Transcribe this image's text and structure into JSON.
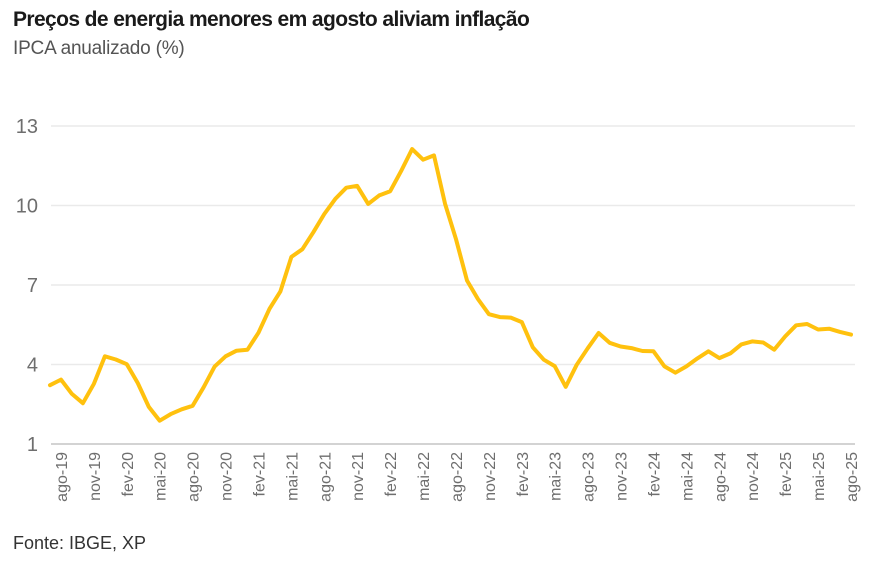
{
  "footer": {
    "source": "Fonte: IBGE, XP"
  },
  "chart_data": {
    "type": "line",
    "title": "Preços de energia menores em agosto aliviam inflação",
    "subtitle": "IPCA anualizado (%)",
    "xlabel": "",
    "ylabel": "",
    "ylim": [
      1,
      13
    ],
    "y_ticks": [
      1,
      4,
      7,
      10,
      13
    ],
    "grid": "horizontal",
    "legend": "none",
    "line_color": "#FFC10E",
    "x_tick_start_index": 1,
    "x_tick_step": 3,
    "x_tick_labels": [
      "ago-19",
      "nov-19",
      "fev-20",
      "mai-20",
      "ago-20",
      "nov-20",
      "fev-21",
      "mai-21",
      "ago-21",
      "nov-21",
      "fev-22",
      "mai-22",
      "ago-22",
      "nov-22",
      "fev-23",
      "mai-23",
      "ago-23",
      "nov-23",
      "fev-24",
      "mai-24",
      "ago-24",
      "nov-24",
      "fev-25",
      "mai-25",
      "ago-25"
    ],
    "series": [
      {
        "name": "IPCA anualizado (%)",
        "color": "#FFC10E",
        "x": [
          "jul-19",
          "ago-19",
          "set-19",
          "out-19",
          "nov-19",
          "dez-19",
          "jan-20",
          "fev-20",
          "mar-20",
          "abr-20",
          "mai-20",
          "jun-20",
          "jul-20",
          "ago-20",
          "set-20",
          "out-20",
          "nov-20",
          "dez-20",
          "jan-21",
          "fev-21",
          "mar-21",
          "abr-21",
          "mai-21",
          "jun-21",
          "jul-21",
          "ago-21",
          "set-21",
          "out-21",
          "nov-21",
          "dez-21",
          "jan-22",
          "fev-22",
          "mar-22",
          "abr-22",
          "mai-22",
          "jun-22",
          "jul-22",
          "ago-22",
          "set-22",
          "out-22",
          "nov-22",
          "dez-22",
          "jan-23",
          "fev-23",
          "mar-23",
          "abr-23",
          "mai-23",
          "jun-23",
          "jul-23",
          "ago-23",
          "set-23",
          "out-23",
          "nov-23",
          "dez-23",
          "jan-24",
          "fev-24",
          "mar-24",
          "abr-24",
          "mai-24",
          "jun-24",
          "jul-24",
          "ago-24",
          "set-24",
          "out-24",
          "nov-24",
          "dez-24",
          "jan-25",
          "fev-25",
          "mar-25",
          "abr-25",
          "mai-25",
          "jun-25",
          "jul-25",
          "ago-25"
        ],
        "values": [
          3.22,
          3.43,
          2.89,
          2.54,
          3.27,
          4.31,
          4.19,
          4.01,
          3.3,
          2.4,
          1.88,
          2.13,
          2.31,
          2.44,
          3.14,
          3.92,
          4.31,
          4.52,
          4.56,
          5.2,
          6.1,
          6.76,
          8.06,
          8.35,
          8.99,
          9.68,
          10.25,
          10.67,
          10.74,
          10.06,
          10.38,
          10.54,
          11.3,
          12.13,
          11.73,
          11.89,
          10.07,
          8.73,
          7.17,
          6.47,
          5.9,
          5.79,
          5.77,
          5.6,
          4.65,
          4.18,
          3.94,
          3.16,
          3.99,
          4.61,
          5.19,
          4.82,
          4.68,
          4.62,
          4.51,
          4.5,
          3.93,
          3.69,
          3.93,
          4.23,
          4.5,
          4.24,
          4.42,
          4.76,
          4.87,
          4.83,
          4.56,
          5.06,
          5.48,
          5.53,
          5.32,
          5.35,
          5.23,
          5.13
        ]
      }
    ]
  }
}
